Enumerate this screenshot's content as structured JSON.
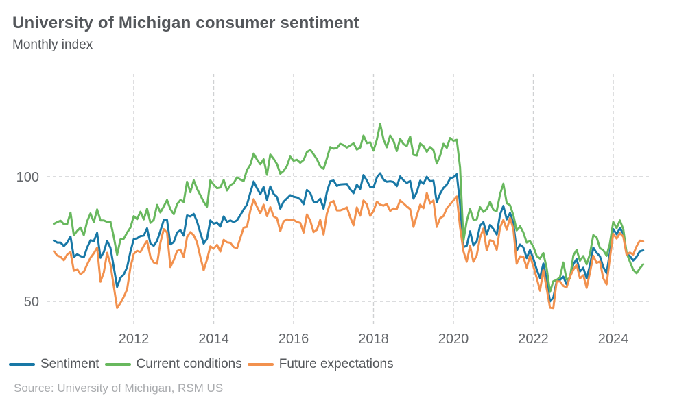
{
  "header": {
    "title": "University of Michigan consumer sentiment",
    "subtitle": "Monthly index"
  },
  "source": "Source: University of Michigan, RSM US",
  "chart_data": {
    "type": "line",
    "title": "University of Michigan consumer sentiment",
    "subtitle": "Monthly index",
    "frequency": "monthly",
    "x_start": "2010-01",
    "x_end": "2024-10",
    "x_ticks": [
      2012,
      2014,
      2016,
      2018,
      2020,
      2022,
      2024
    ],
    "y_ticks": [
      50,
      100
    ],
    "ylim": [
      40,
      141
    ],
    "grid": "dashed-light-gray",
    "grid_color": "#cfd1d3",
    "axis_label_color": "#63666a",
    "legend_position": "bottom-left",
    "series": [
      {
        "name": "Sentiment",
        "color": "#1878a6",
        "values": [
          74.4,
          73.6,
          73.6,
          72.2,
          73.6,
          76.0,
          67.8,
          68.9,
          68.2,
          67.7,
          71.6,
          74.5,
          74.2,
          77.5,
          67.5,
          69.8,
          74.3,
          71.5,
          63.7,
          55.8,
          59.5,
          60.8,
          63.7,
          69.9,
          75.0,
          75.3,
          76.2,
          76.4,
          79.3,
          73.2,
          72.3,
          74.3,
          78.3,
          82.6,
          82.7,
          72.9,
          73.8,
          77.6,
          78.6,
          76.4,
          84.5,
          84.1,
          85.1,
          82.1,
          77.5,
          73.2,
          75.1,
          82.5,
          81.2,
          81.6,
          80.0,
          84.1,
          81.9,
          82.5,
          81.8,
          82.5,
          84.6,
          86.9,
          88.8,
          93.6,
          98.1,
          95.4,
          93.0,
          95.9,
          90.7,
          96.1,
          93.1,
          91.9,
          87.2,
          90.0,
          91.3,
          92.6,
          92.0,
          91.7,
          91.0,
          89.0,
          94.7,
          93.5,
          90.0,
          89.8,
          91.2,
          87.2,
          93.8,
          98.2,
          98.5,
          96.3,
          96.9,
          97.0,
          97.1,
          95.0,
          93.4,
          96.8,
          95.1,
          100.7,
          98.5,
          95.9,
          95.7,
          99.7,
          101.4,
          98.8,
          98.0,
          98.2,
          97.9,
          96.2,
          100.1,
          98.6,
          97.5,
          98.3,
          91.2,
          93.8,
          98.4,
          97.2,
          100.0,
          98.2,
          98.4,
          89.8,
          93.2,
          95.5,
          96.8,
          99.3,
          99.8,
          101.0,
          89.1,
          71.8,
          72.3,
          78.1,
          72.5,
          74.1,
          80.4,
          81.8,
          76.9,
          80.7,
          79.0,
          76.8,
          84.9,
          88.3,
          82.9,
          85.5,
          81.2,
          70.3,
          72.8,
          71.7,
          67.4,
          70.6,
          67.2,
          62.8,
          59.4,
          65.2,
          58.4,
          50.0,
          51.5,
          58.2,
          58.6,
          59.9,
          56.8,
          59.7,
          64.9,
          67.0,
          62.0,
          63.5,
          59.2,
          64.4,
          71.6,
          69.5,
          68.1,
          63.8,
          61.3,
          69.7,
          79.0,
          76.9,
          79.4,
          77.2,
          69.1,
          68.2,
          66.4,
          67.9,
          70.1,
          70.5
        ]
      },
      {
        "name": "Current conditions",
        "color": "#68b85e",
        "values": [
          81.1,
          81.8,
          82.4,
          81.0,
          81.0,
          85.6,
          76.5,
          78.3,
          79.6,
          76.6,
          82.1,
          85.3,
          81.8,
          86.9,
          82.5,
          82.5,
          81.9,
          82.0,
          75.8,
          68.7,
          74.9,
          75.1,
          77.6,
          79.6,
          84.2,
          83.0,
          86.0,
          82.9,
          87.2,
          81.5,
          82.7,
          88.7,
          85.7,
          88.1,
          90.7,
          87.0,
          85.0,
          89.0,
          90.7,
          89.9,
          98.0,
          93.8,
          98.6,
          95.2,
          92.6,
          89.9,
          88.0,
          98.6,
          96.8,
          95.4,
          95.7,
          98.7,
          94.5,
          96.6,
          97.4,
          99.8,
          98.9,
          98.3,
          102.7,
          104.8,
          109.3,
          106.9,
          105.0,
          107.0,
          100.8,
          108.9,
          107.2,
          105.1,
          101.2,
          102.3,
          104.3,
          108.1,
          106.4,
          106.8,
          105.6,
          106.7,
          109.9,
          110.8,
          109.0,
          107.0,
          104.2,
          103.2,
          107.3,
          111.9,
          111.3,
          111.5,
          113.2,
          112.7,
          111.7,
          112.5,
          113.4,
          110.9,
          111.7,
          116.5,
          113.5,
          113.8,
          110.5,
          114.9,
          121.2,
          114.9,
          111.8,
          116.5,
          114.4,
          110.3,
          115.2,
          113.1,
          112.3,
          116.1,
          108.8,
          108.5,
          113.3,
          112.3,
          110.0,
          111.9,
          110.7,
          105.3,
          108.5,
          113.2,
          111.6,
          115.5,
          114.4,
          114.8,
          103.7,
          74.3,
          82.3,
          87.1,
          82.8,
          82.9,
          87.8,
          85.9,
          87.0,
          90.0,
          86.7,
          86.2,
          93.0,
          97.2,
          89.4,
          88.6,
          84.5,
          78.5,
          80.1,
          77.7,
          73.6,
          74.2,
          72.0,
          68.2,
          67.2,
          69.4,
          63.3,
          53.8,
          58.1,
          58.6,
          59.7,
          65.6,
          58.8,
          59.4,
          68.4,
          70.7,
          66.3,
          68.2,
          64.9,
          69.0,
          76.6,
          75.7,
          71.4,
          70.6,
          68.3,
          73.3,
          81.9,
          79.4,
          82.5,
          79.0,
          69.6,
          65.9,
          62.7,
          61.3,
          63.3,
          64.9
        ]
      },
      {
        "name": "Future expectations",
        "color": "#f2914e",
        "values": [
          70.1,
          68.4,
          67.9,
          66.5,
          68.8,
          69.8,
          62.3,
          62.9,
          60.9,
          61.9,
          64.8,
          67.5,
          69.3,
          71.6,
          57.9,
          61.6,
          69.5,
          64.8,
          56.0,
          47.4,
          49.4,
          51.8,
          54.8,
          63.6,
          69.1,
          70.3,
          69.8,
          72.3,
          74.3,
          67.8,
          65.6,
          65.1,
          73.5,
          79.0,
          77.6,
          63.8,
          66.6,
          70.2,
          70.8,
          67.8,
          75.8,
          77.8,
          76.5,
          73.7,
          67.8,
          62.5,
          66.8,
          72.1,
          71.2,
          72.7,
          70.0,
          74.7,
          73.7,
          73.5,
          71.8,
          71.3,
          75.4,
          79.6,
          79.9,
          86.4,
          91.0,
          88.0,
          85.3,
          88.8,
          84.2,
          87.8,
          84.1,
          83.4,
          78.2,
          82.1,
          82.9,
          82.7,
          82.7,
          81.9,
          81.5,
          77.6,
          84.9,
          82.4,
          77.8,
          78.7,
          82.7,
          76.8,
          85.2,
          89.5,
          90.3,
          86.5,
          86.5,
          87.0,
          87.7,
          83.8,
          80.5,
          87.7,
          84.4,
          90.5,
          88.9,
          84.3,
          86.3,
          90.0,
          88.8,
          88.4,
          89.1,
          86.3,
          87.3,
          87.1,
          90.5,
          89.3,
          88.1,
          87.0,
          79.9,
          84.4,
          88.8,
          87.4,
          93.5,
          89.3,
          90.5,
          79.9,
          83.4,
          84.2,
          87.3,
          88.9,
          90.5,
          92.1,
          79.7,
          70.1,
          65.9,
          72.3,
          65.9,
          68.5,
          75.6,
          79.2,
          70.5,
          74.6,
          74.0,
          70.7,
          79.7,
          82.7,
          78.8,
          83.5,
          79.0,
          65.1,
          68.1,
          67.9,
          63.5,
          68.3,
          64.1,
          59.4,
          54.3,
          62.5,
          55.2,
          47.5,
          47.3,
          58.0,
          58.0,
          56.2,
          55.6,
          59.9,
          62.7,
          64.7,
          59.2,
          60.5,
          55.4,
          61.5,
          68.3,
          65.5,
          66.0,
          59.3,
          56.8,
          67.4,
          77.1,
          75.2,
          77.4,
          76.0,
          68.8,
          69.6,
          68.8,
          72.1,
          74.4,
          74.1
        ]
      }
    ]
  }
}
